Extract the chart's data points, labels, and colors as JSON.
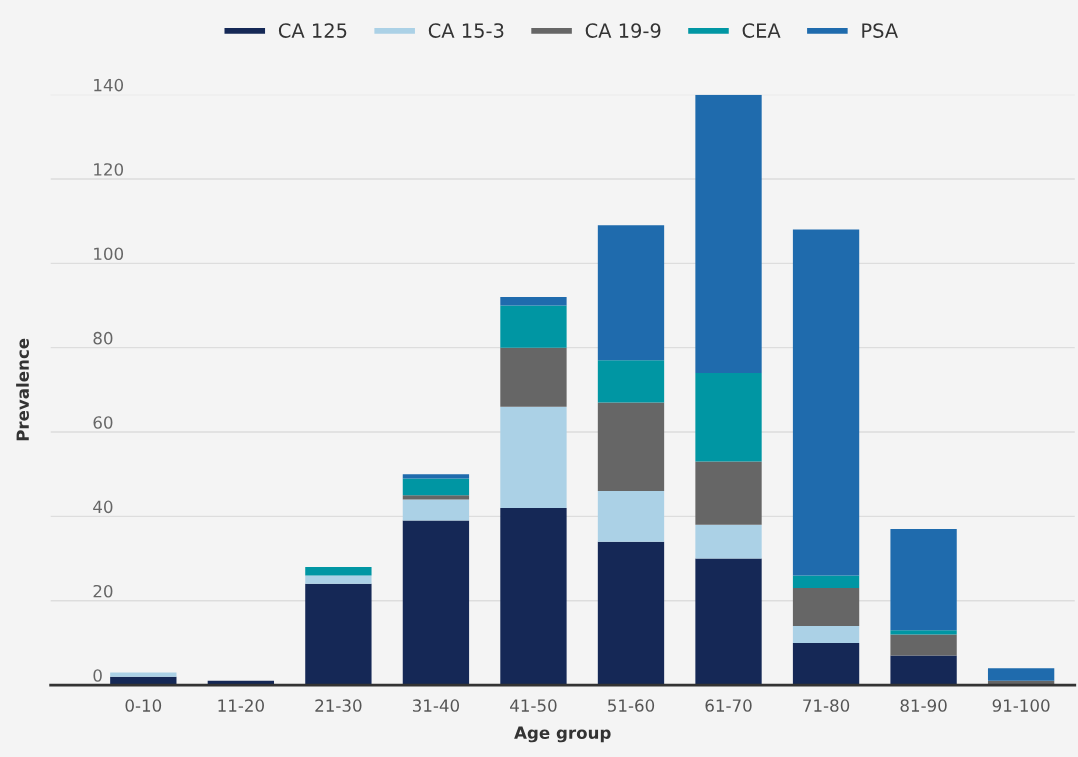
{
  "chart_data": {
    "type": "bar",
    "stacked": true,
    "xlabel": "Age group",
    "ylabel": "Prevalence",
    "categories": [
      "0-10",
      "11-20",
      "21-30",
      "31-40",
      "41-50",
      "51-60",
      "61-70",
      "71-80",
      "81-90",
      "91-100"
    ],
    "series": [
      {
        "name": "CA 125",
        "color": "#152856",
        "values": [
          2,
          1,
          24,
          39,
          42,
          34,
          30,
          10,
          7,
          0
        ]
      },
      {
        "name": "CA 15-3",
        "color": "#abd1e6",
        "values": [
          1,
          0,
          2,
          5,
          24,
          12,
          8,
          4,
          0,
          0
        ]
      },
      {
        "name": "CA 19-9",
        "color": "#666666",
        "values": [
          0,
          0,
          0,
          1,
          14,
          21,
          15,
          9,
          5,
          1
        ]
      },
      {
        "name": "CEA",
        "color": "#0096a3",
        "values": [
          0,
          0,
          2,
          4,
          10,
          10,
          21,
          3,
          1,
          0
        ]
      },
      {
        "name": "PSA",
        "color": "#1f6bad",
        "values": [
          0,
          0,
          0,
          1,
          2,
          32,
          66,
          82,
          24,
          3
        ]
      }
    ],
    "ylim": [
      0,
      140
    ],
    "yticks": [
      0,
      20,
      40,
      60,
      80,
      100,
      120,
      140
    ],
    "grid": "y",
    "legend": "top"
  }
}
